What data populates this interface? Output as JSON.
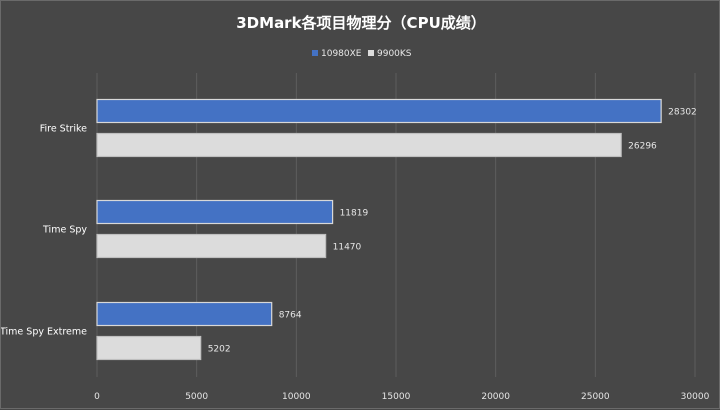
{
  "chart_data": {
    "type": "bar",
    "orientation": "horizontal",
    "title": "3DMark各项目物理分（CPU成绩）",
    "categories": [
      "Fire Strike",
      "Time Spy",
      "Time Spy Extreme"
    ],
    "series": [
      {
        "name": "10980XE",
        "values": [
          28302,
          11819,
          8764
        ],
        "color": "#4472c4"
      },
      {
        "name": "9900KS",
        "values": [
          26296,
          11470,
          5202
        ],
        "color": "#dcdcdc"
      }
    ],
    "xlim": [
      0,
      30000
    ],
    "x_ticks": [
      "0",
      "5000",
      "10000",
      "15000",
      "20000",
      "25000",
      "30000"
    ],
    "grid": "vertical",
    "legend_position": "top-center",
    "background": "#474747"
  }
}
